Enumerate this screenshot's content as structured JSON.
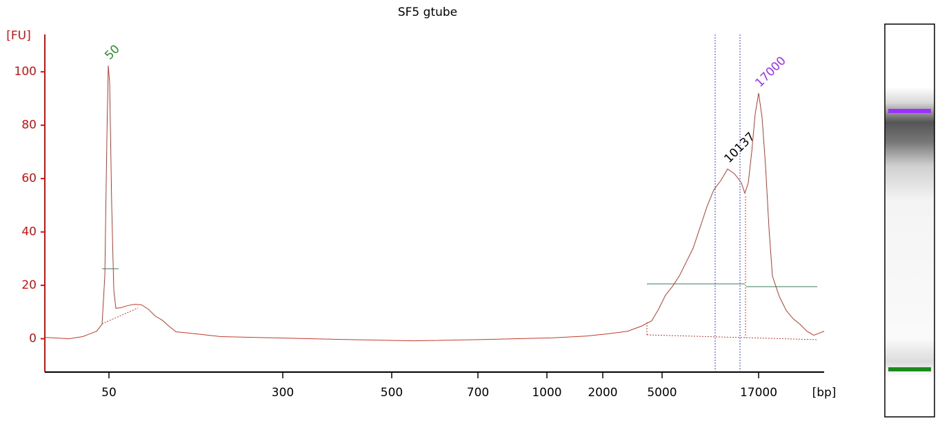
{
  "chart_data": {
    "type": "line",
    "title": "SF5 gtube",
    "y_label": "[FU]",
    "x_label": "[bp]",
    "color": "#c0392b",
    "xlim": [
      20,
      133
    ],
    "ylim": [
      -12.5,
      114
    ],
    "yticks": [
      0,
      20,
      40,
      60,
      80,
      100
    ],
    "xticks": [
      {
        "value": 29.3,
        "label": "50"
      },
      {
        "value": 54.5,
        "label": "300"
      },
      {
        "value": 70.3,
        "label": "500"
      },
      {
        "value": 82.8,
        "label": "700"
      },
      {
        "value": 92.8,
        "label": "1000"
      },
      {
        "value": 100.9,
        "label": "2000"
      },
      {
        "value": 109.5,
        "label": "5000"
      },
      {
        "value": 123.5,
        "label": "17000"
      }
    ],
    "x": [
      20,
      23.5,
      25.5,
      27.5,
      28.3,
      28.7,
      29,
      29.2,
      29.4,
      29.7,
      30,
      30.3,
      31,
      32,
      33,
      34,
      35,
      36,
      37,
      38,
      39,
      41,
      45.5,
      53.5,
      63.5,
      73.5,
      83.5,
      93.5,
      98.5,
      101.5,
      104.5,
      106.5,
      108,
      109,
      110,
      111,
      112,
      113,
      114,
      115,
      116,
      117,
      118,
      119,
      120,
      121,
      121.5,
      122,
      122.5,
      123,
      123.5,
      124,
      124.5,
      125,
      125.5,
      126.5,
      127.5,
      128.5,
      129.5,
      130.5,
      131.5,
      132.5,
      133
    ],
    "values": [
      0.5,
      0,
      0.8,
      2.8,
      5.4,
      23.5,
      75.2,
      102.3,
      95.9,
      49.4,
      18.3,
      11.4,
      11.6,
      12.4,
      12.9,
      12.7,
      11.1,
      8.5,
      7.0,
      4.7,
      2.6,
      2.1,
      0.8,
      0.3,
      -0.3,
      -0.8,
      -0.3,
      0.3,
      1.0,
      1.8,
      2.8,
      4.7,
      6.7,
      11.1,
      16.3,
      19.6,
      23.5,
      28.7,
      33.9,
      41.6,
      49.4,
      55.8,
      59.2,
      63.6,
      61.8,
      58.4,
      54.5,
      58.4,
      70.0,
      84.2,
      92.0,
      82.9,
      64.9,
      41.6,
      23.5,
      15.8,
      10.6,
      7.5,
      5.4,
      2.8,
      1.3,
      2.3,
      2.8
    ],
    "peaks": [
      {
        "label": "50",
        "x": 29.2,
        "y": 102.3,
        "color": "#2e8b2e"
      },
      {
        "label": "10137",
        "x": 119,
        "y": 63.6,
        "color": "#000000"
      },
      {
        "label": "17000",
        "x": 123.5,
        "y": 92.0,
        "color": "#9b30ff"
      }
    ],
    "markers": [
      117.2,
      120.8
    ],
    "marker_color": "#3344cc"
  }
}
